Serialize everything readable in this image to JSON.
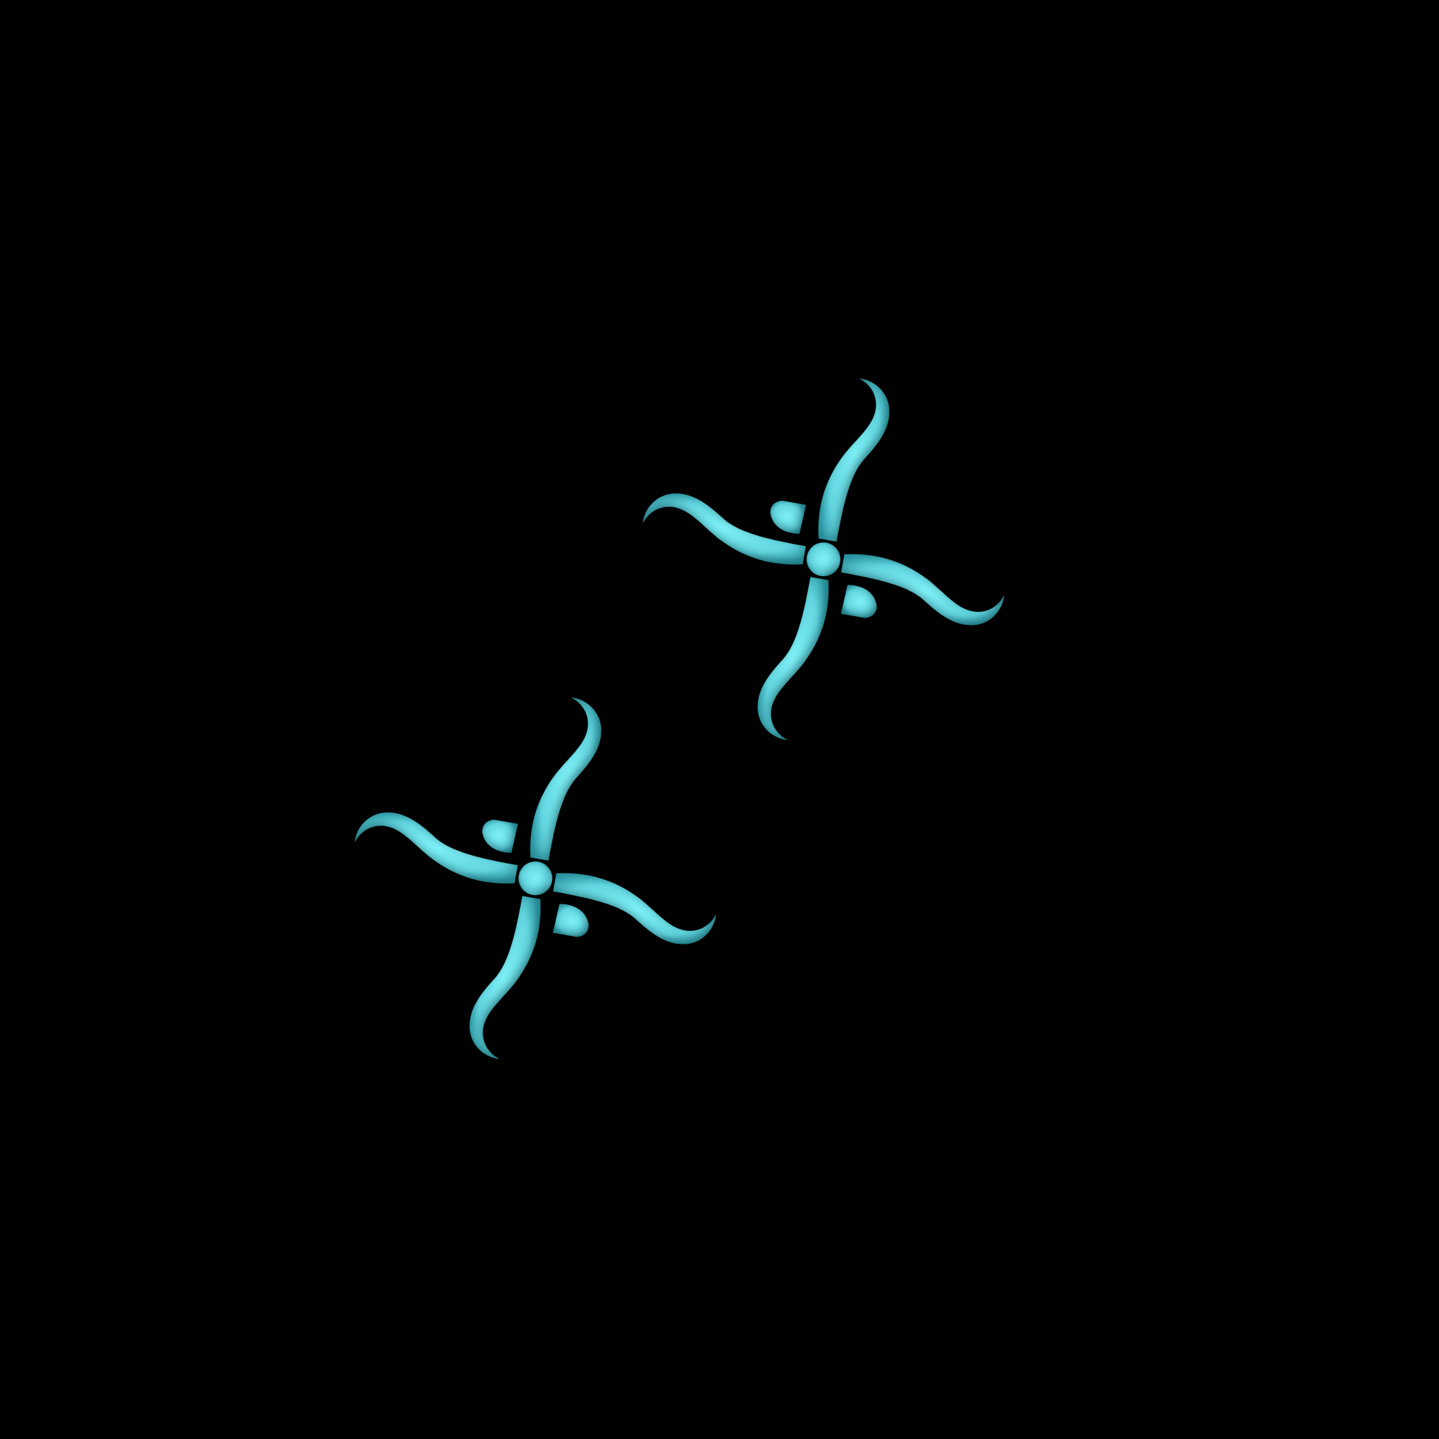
{
  "background_color": "#000000",
  "ornament": {
    "fill_color": "#6bdfe8",
    "edge_color": "#2a8b96",
    "icon": "swirl-cross-ornament"
  },
  "ornament_count": 2
}
